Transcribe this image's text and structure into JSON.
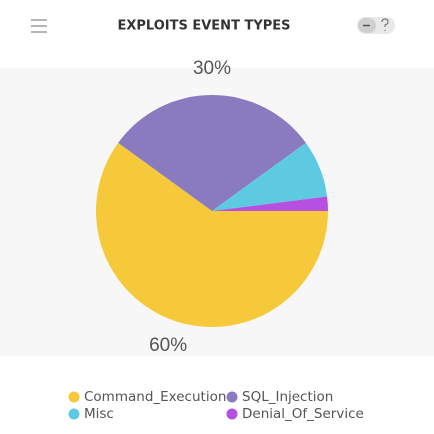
{
  "chart_data": {
    "type": "pie",
    "title": "EXPLOITS EVENT TYPES",
    "categories": [
      "Command_Execution",
      "SQL_Injection",
      "Misc",
      "Denial_Of_Service"
    ],
    "values": [
      60,
      30,
      8,
      2
    ],
    "value_labels": [
      "60%",
      "30%",
      null,
      null
    ],
    "colors": [
      "#f5c93a",
      "#8a7bc1",
      "#5ecae2",
      "#b650e0"
    ]
  }
}
